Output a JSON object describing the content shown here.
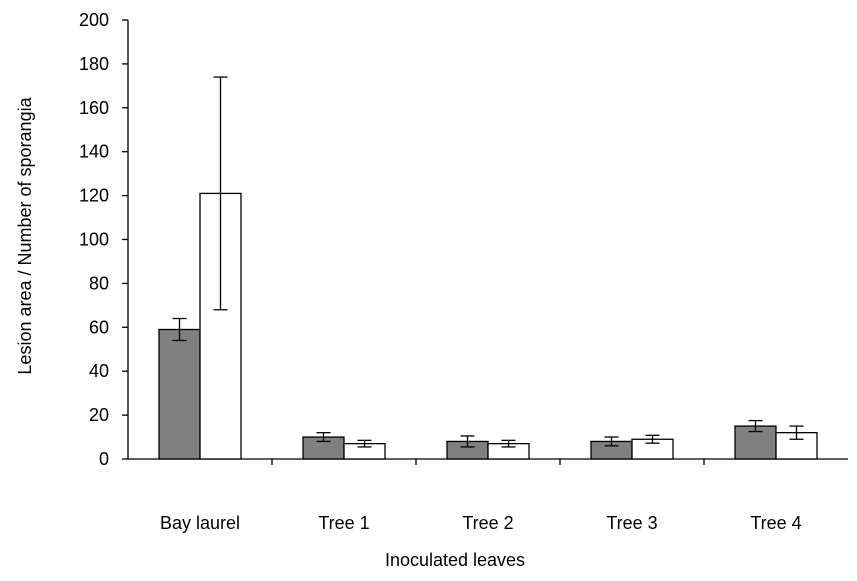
{
  "chart_data": {
    "type": "bar",
    "title": "",
    "xlabel": "Inoculated leaves",
    "ylabel": "Lesion area / Number of sporangia",
    "categories": [
      "Bay laurel",
      "Tree 1",
      "Tree 2",
      "Tree 3",
      "Tree 4"
    ],
    "ylim": [
      0,
      200
    ],
    "yticks": [
      0,
      20,
      40,
      60,
      80,
      100,
      120,
      140,
      160,
      180,
      200
    ],
    "grid": false,
    "legend": "none",
    "series": [
      {
        "color": "#808080",
        "values": [
          59,
          10,
          8,
          8,
          15
        ],
        "error": [
          5,
          2,
          2.5,
          2,
          2.5
        ]
      },
      {
        "color": "#ffffff",
        "values": [
          121,
          7,
          7,
          9,
          12
        ],
        "error": [
          53,
          1.5,
          1.5,
          1.8,
          3
        ]
      }
    ]
  }
}
